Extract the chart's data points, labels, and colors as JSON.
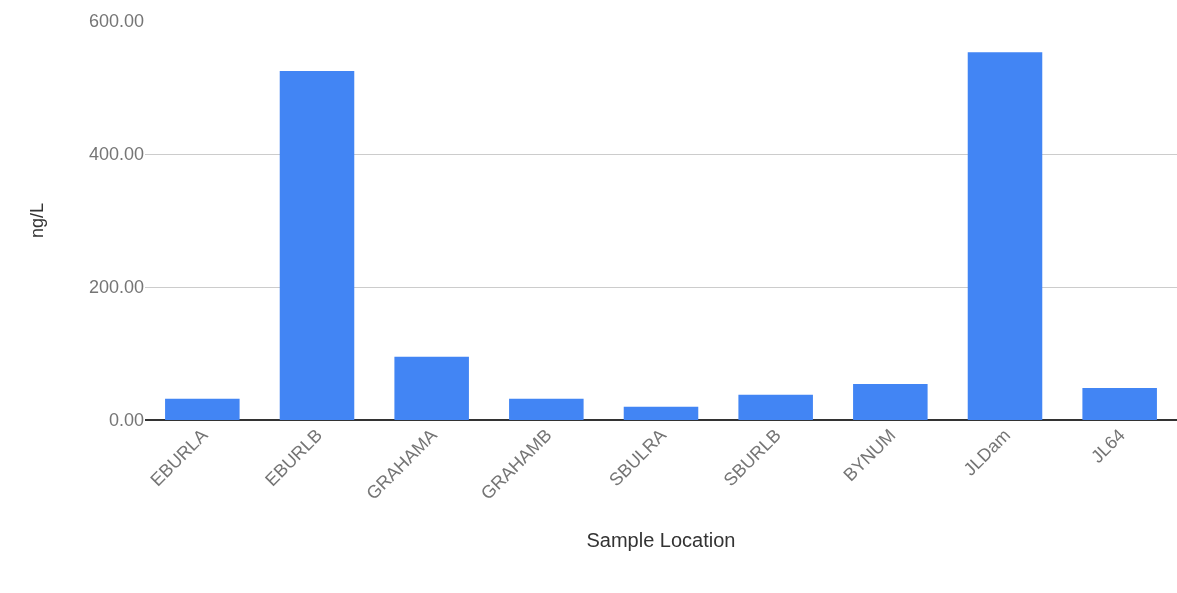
{
  "chart_data": {
    "type": "bar",
    "xlabel": "Sample Location",
    "ylabel": "ng/L",
    "categories": [
      "EBURLA",
      "EBURLB",
      "GRAHAMA",
      "GRAHAMB",
      "SBULRA",
      "SBURLB",
      "BYNUM",
      "JLDam",
      "JL64"
    ],
    "values": [
      32,
      525,
      95,
      32,
      20,
      38,
      54,
      553,
      48
    ],
    "color": "#4285f4",
    "ylim": [
      0,
      600
    ],
    "yticks": [
      {
        "value": 0,
        "label": "0.00"
      },
      {
        "value": 200,
        "label": "200.00"
      },
      {
        "value": 400,
        "label": "400.00"
      },
      {
        "value": 600,
        "label": "600.00"
      }
    ],
    "grid": "y",
    "legend": false
  }
}
